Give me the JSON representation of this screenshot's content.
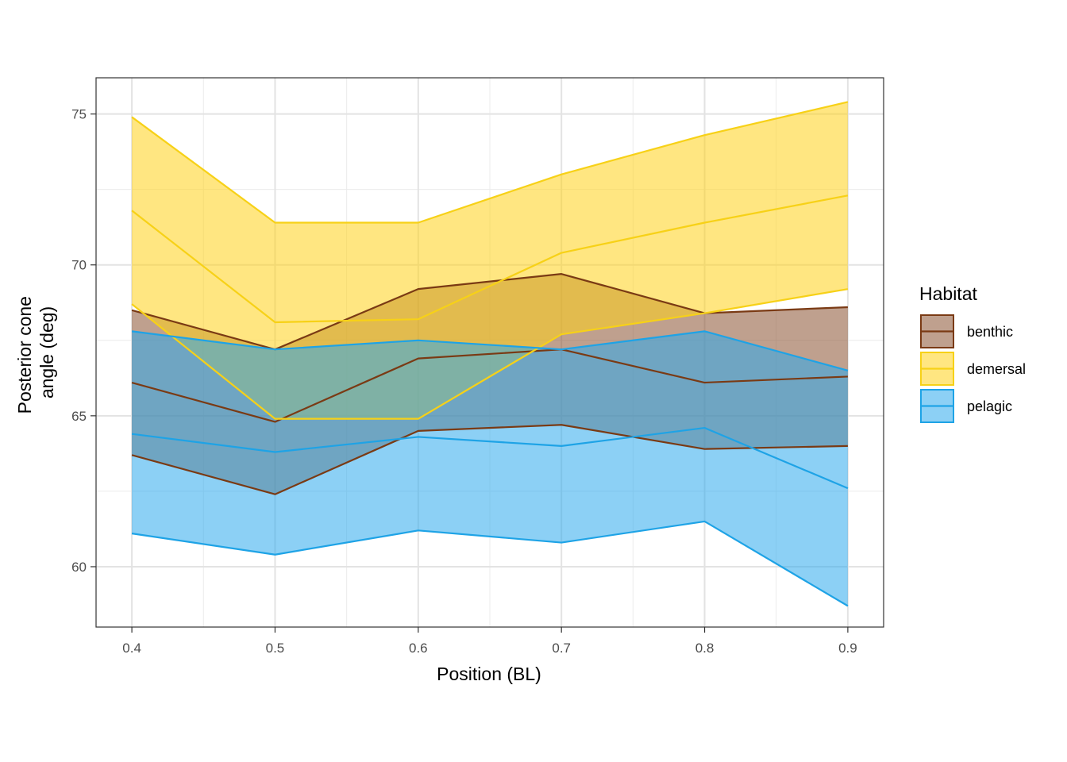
{
  "chart_data": {
    "type": "area",
    "xlabel": "Position (BL)",
    "ylabel_lines": [
      "Posterior cone",
      "angle (deg)"
    ],
    "x": [
      0.4,
      0.5,
      0.6,
      0.7,
      0.8,
      0.9
    ],
    "x_tick_labels": [
      "0.4",
      "0.5",
      "0.6",
      "0.7",
      "0.8",
      "0.9"
    ],
    "y_ticks": [
      60,
      65,
      70,
      75
    ],
    "y_tick_labels": [
      "60",
      "65",
      "70",
      "75"
    ],
    "xlim": [
      0.375,
      0.925
    ],
    "ylim": [
      58,
      76.2
    ],
    "grid": true,
    "legend": {
      "title": "Habitat",
      "placement": "right"
    },
    "series": [
      {
        "name": "benthic",
        "color": "#7a3a14",
        "fill": "#8b5232",
        "mean": [
          66.1,
          64.8,
          66.9,
          67.2,
          66.1,
          66.3
        ],
        "lower": [
          63.7,
          62.4,
          64.5,
          64.7,
          63.9,
          64.0
        ],
        "upper": [
          68.5,
          67.2,
          69.2,
          69.7,
          68.4,
          68.6
        ]
      },
      {
        "name": "demersal",
        "color": "#f7d117",
        "fill": "#ffd21a",
        "mean": [
          71.8,
          68.1,
          68.2,
          70.4,
          71.4,
          72.3
        ],
        "lower": [
          68.7,
          64.9,
          64.9,
          67.7,
          68.4,
          69.2
        ],
        "upper": [
          74.9,
          71.4,
          71.4,
          73.0,
          74.3,
          75.4
        ]
      },
      {
        "name": "pelagic",
        "color": "#1ea3e6",
        "fill": "#2ea9ec",
        "mean": [
          64.4,
          63.8,
          64.3,
          64.0,
          64.6,
          62.6
        ],
        "lower": [
          61.1,
          60.4,
          61.2,
          60.8,
          61.5,
          58.7
        ],
        "upper": [
          67.8,
          67.2,
          67.5,
          67.2,
          67.8,
          66.5
        ]
      }
    ]
  }
}
